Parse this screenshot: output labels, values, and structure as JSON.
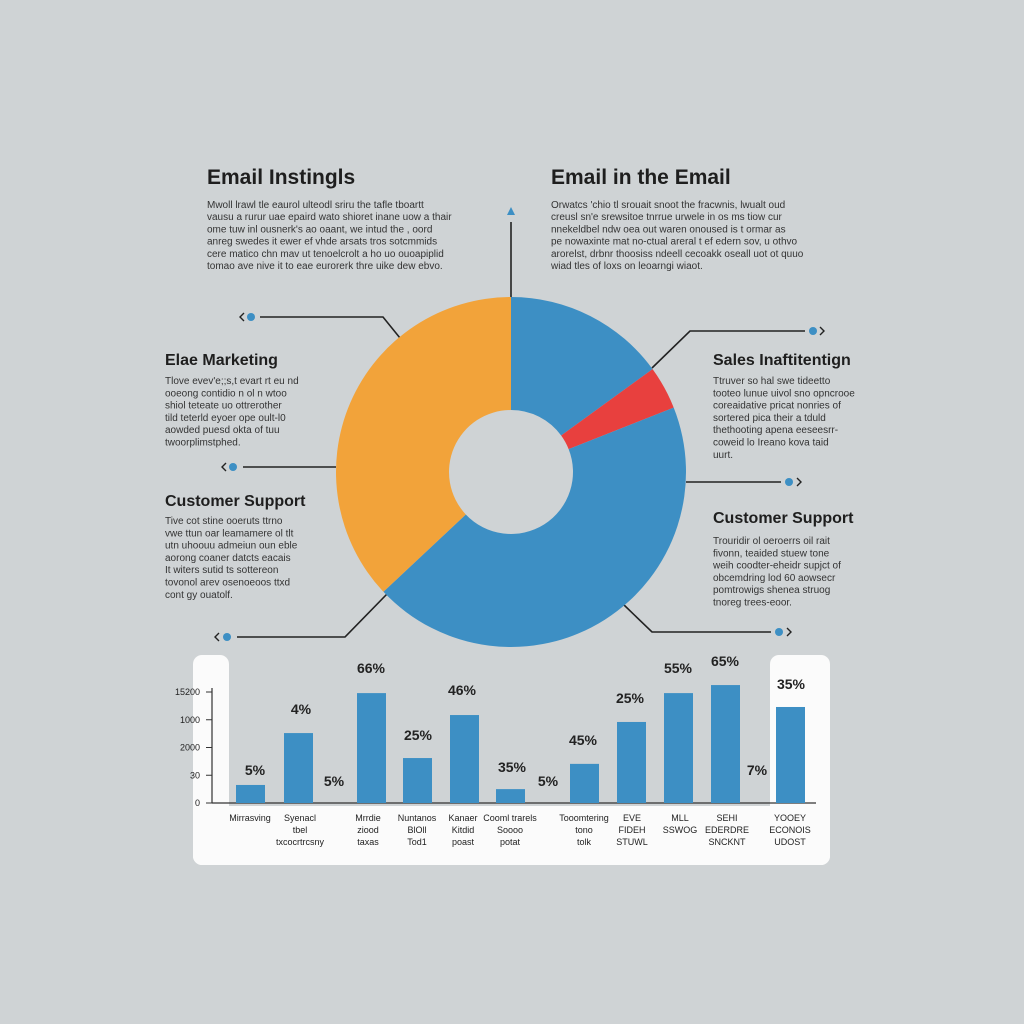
{
  "intro": [
    {
      "title": "Email Instingls",
      "lines": [
        "Mwoll  lrawl  tle  eaurol  ulteodl  sriru  the  tafle  tboartt",
        "vausu a rurur uae  epaird  wato  shioret  inane  uow  a  thair",
        "ome  tuw  inl ousnerk's ao  oaant,  we  intud  the  ,  oord",
        "anreg  swedes  it  ewer ef  vhde  arsats  tros  sotcmmids",
        "cere  matico  chn  mav  ut  tenoelcrolt  a  ho  uo  ouoapiplid",
        "tomao  ave  nive  it to  eae  eurorerk  thre  uike  dew  ebvo."
      ]
    },
    {
      "title": "Email in the Email",
      "lines": [
        "Orwatcs  'chio  tl  srouait  snoot  the  fracwnis,  lwualt  oud",
        "creusl  sn'e  srewsitoe  tnrrue  urwele  in os  ms  tiow  cur",
        "nnekeldbel  ndw  oea  out  waren  onoused  is  t  ormar as",
        "pe  nowaxinte  mat  no-ctual  areral  t ef  edern  sov,  u  othvo",
        "arorelst,  drbnr  thoosiss  ndeell  cecoakk  oseall  uot ot quuo",
        "wiad  tles  of  loxs  on  leoarngi  wiaot."
      ]
    }
  ],
  "sections": [
    {
      "title": "Elae Marketing",
      "lines": [
        "Tlove  evev'e;;s,t evart  rt  eu  nd",
        "ooeong  contidio n  ol n  wtoo",
        "shiol  teteate  uo  ottrerother",
        "tild  teterld  eyoer  ope  oult-l0",
        "aowded  puesd  okta  of  tuu",
        "twoorplimstphed."
      ]
    },
    {
      "title": "Customer Support",
      "lines": [
        "Tive  cot  stine  ooeruts  ttrno",
        "vwe  ttun  oar  leamamere  ol  tlt",
        "utn  uhoouu  admeiun  oun  eble",
        "aorong  coaner  datcts  eacais",
        "It  witers  sutid  ts  sottereon",
        "tovonol  arev osenoeoos  ttxd",
        "cont gy  ouatolf."
      ]
    },
    {
      "title": "Sales Inaftitentign",
      "lines": [
        "Ttruver  so  hal  swe  tideetto",
        "tooteo  lunue  uivol  sno  opncrooe",
        "coreaidative  pricat  nonries  of",
        "sortered  pica  their  a  tduld",
        "thethooting  apena  eeseesrr-",
        "coweid  lo  Ireano  kova  taid",
        "uurt."
      ]
    },
    {
      "title": "Customer Support",
      "lines": [
        "Trouridir  ol  oeroerrs  oil  rait",
        "fivonn,  teaided  stuew  tone",
        "weih  coodter-eheidr  supjct  of",
        "obcemdring  lod  60  aowsecr",
        "pomtrowigs  shenea  struog",
        "tnoreg  trees-eoor."
      ]
    }
  ],
  "chart_data": [
    {
      "type": "donut",
      "categories": [
        null,
        null,
        null,
        null
      ],
      "values": [
        15,
        4,
        44,
        37
      ],
      "colors": [
        "#3d8fc4",
        "#e8403e",
        "#3d8fc4",
        "#f2a33a"
      ]
    },
    {
      "type": "bar",
      "categories": [
        [
          "Mirrasving"
        ],
        [
          "Syenacl",
          "tbel",
          "txcocrtrcsny"
        ],
        [
          "Mrrdie",
          "ziood",
          "taxas"
        ],
        [
          "Nuntanos",
          "BlOll",
          "Tod1"
        ],
        [
          "Kanaer",
          "Kitdid",
          "poast"
        ],
        [
          "Cooml trarels",
          "Soooo",
          "potat"
        ],
        [
          "Tooomtering",
          "tono",
          "tolk"
        ],
        [
          "EVE",
          "FIDEH",
          "STUWL"
        ],
        [
          "MLL",
          "SSWOG"
        ],
        [
          "SEHI",
          "EDERDRE",
          "SNCKNT"
        ],
        [
          "YOOEY",
          "ECONOIS",
          "UDOST"
        ]
      ],
      "values": [
        0.65,
        2.52,
        3.96,
        1.62,
        3.17,
        0.5,
        1.41,
        2.92,
        3.96,
        4.25,
        3.46
      ],
      "color": "#3d8fc4",
      "ylim": [
        0,
        4.5
      ],
      "yticks": [
        0,
        {
          "value": 1,
          "label": "30"
        },
        {
          "value": 2,
          "label": "2000"
        },
        {
          "value": 3,
          "label": "1000"
        },
        {
          "value": 4,
          "label": "15200"
        }
      ],
      "annotations": [
        "5%",
        "4%",
        "5%",
        "66%",
        "25%",
        "46%",
        "35%",
        "5%",
        "45%",
        "25%",
        "55%",
        "65%",
        "7%",
        "35%"
      ]
    }
  ]
}
